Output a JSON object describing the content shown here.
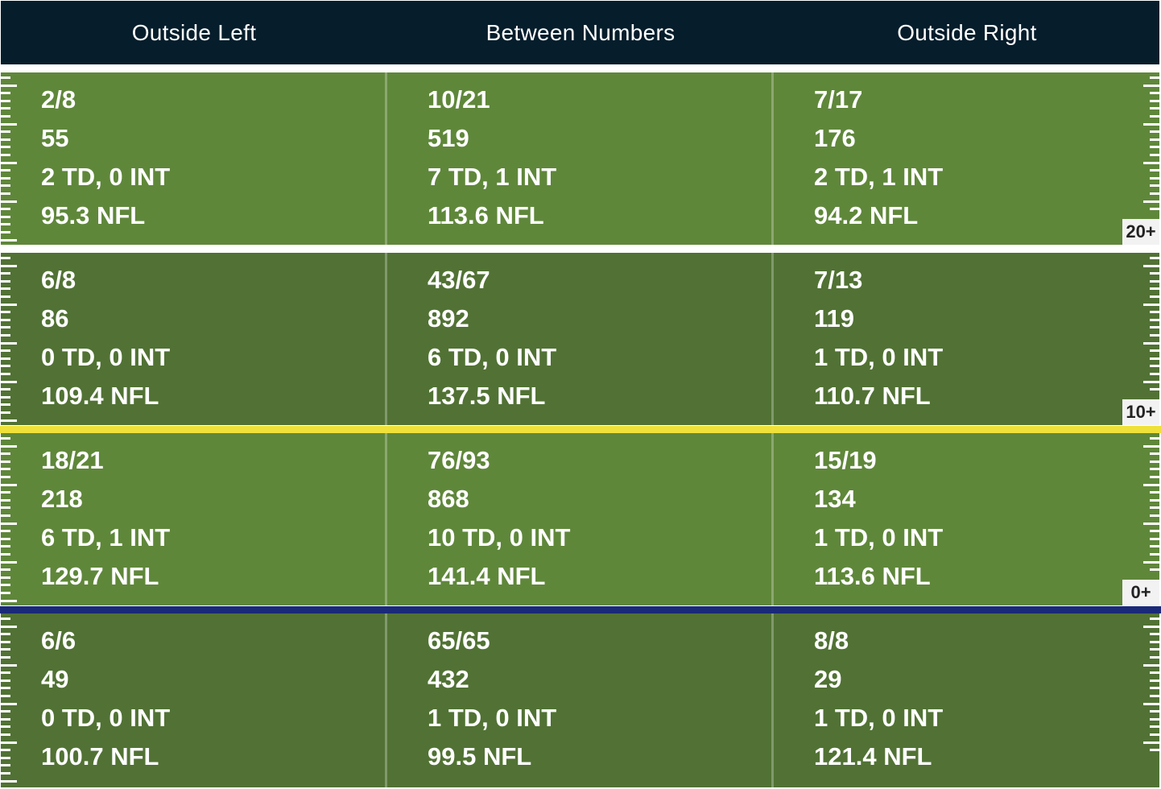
{
  "colors": {
    "header_bg": "#061d2b",
    "turf_light": "#5f873a",
    "turf_dark": "#517234",
    "yard_line": "#ffffff",
    "first_down_line": "#efe13a",
    "line_of_scrimmage": "#1a2a78"
  },
  "chart_data": {
    "type": "table",
    "columns": [
      "Outside Left",
      "Between Numbers",
      "Outside Right"
    ],
    "rows": [
      {
        "band": "20+",
        "cells": [
          {
            "comp_att": "2/8",
            "yards": "55",
            "td_int": "2 TD, 0 INT",
            "rating": "95.3 NFL"
          },
          {
            "comp_att": "10/21",
            "yards": "519",
            "td_int": "7 TD, 1 INT",
            "rating": "113.6 NFL"
          },
          {
            "comp_att": "7/17",
            "yards": "176",
            "td_int": "2 TD, 1 INT",
            "rating": "94.2 NFL"
          }
        ]
      },
      {
        "band": "10+",
        "cells": [
          {
            "comp_att": "6/8",
            "yards": "86",
            "td_int": "0 TD, 0 INT",
            "rating": "109.4 NFL"
          },
          {
            "comp_att": "43/67",
            "yards": "892",
            "td_int": "6 TD, 0 INT",
            "rating": "137.5 NFL"
          },
          {
            "comp_att": "7/13",
            "yards": "119",
            "td_int": "1 TD, 0 INT",
            "rating": "110.7 NFL"
          }
        ]
      },
      {
        "band": "0+",
        "cells": [
          {
            "comp_att": "18/21",
            "yards": "218",
            "td_int": "6 TD, 1 INT",
            "rating": "129.7 NFL"
          },
          {
            "comp_att": "76/93",
            "yards": "868",
            "td_int": "10 TD, 0 INT",
            "rating": "141.4 NFL"
          },
          {
            "comp_att": "15/19",
            "yards": "134",
            "td_int": "1 TD, 0 INT",
            "rating": "113.6 NFL"
          }
        ]
      },
      {
        "band": "",
        "cells": [
          {
            "comp_att": "6/6",
            "yards": "49",
            "td_int": "0 TD, 0 INT",
            "rating": "100.7 NFL"
          },
          {
            "comp_att": "65/65",
            "yards": "432",
            "td_int": "1 TD, 0 INT",
            "rating": "99.5 NFL"
          },
          {
            "comp_att": "8/8",
            "yards": "29",
            "td_int": "1 TD, 0 INT",
            "rating": "121.4 NFL"
          }
        ]
      }
    ]
  }
}
